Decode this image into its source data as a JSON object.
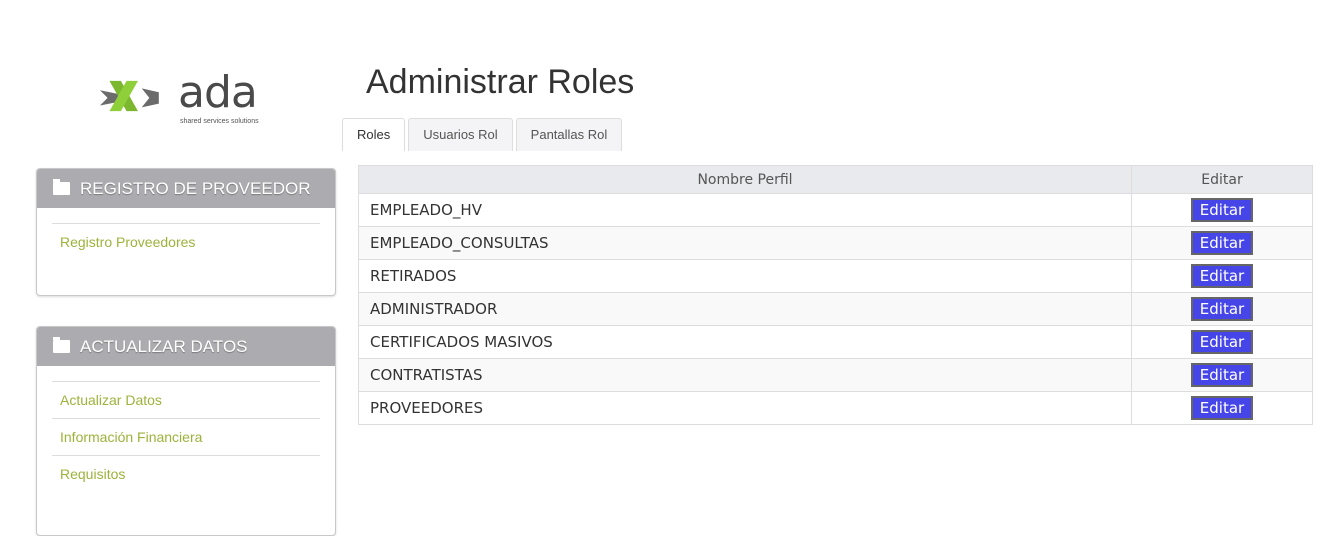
{
  "logo": {
    "text": "ada",
    "tagline": "shared services solutions"
  },
  "page_title": "Administrar Roles",
  "tabs": [
    {
      "label": "Roles"
    },
    {
      "label": "Usuarios Rol"
    },
    {
      "label": "Pantallas Rol"
    }
  ],
  "sidebar": {
    "panels": [
      {
        "title": "REGISTRO DE PROVEEDOR",
        "items": [
          {
            "label": "Registro Proveedores"
          }
        ]
      },
      {
        "title": "ACTUALIZAR DATOS",
        "items": [
          {
            "label": "Actualizar Datos"
          },
          {
            "label": "Información Financiera"
          },
          {
            "label": "Requisitos"
          }
        ]
      }
    ]
  },
  "table": {
    "headers": [
      "Nombre Perfil",
      "Editar"
    ],
    "button_label": "Editar",
    "rows": [
      "EMPLEADO_HV",
      "EMPLEADO_CONSULTAS",
      "RETIRADOS",
      "ADMINISTRADOR",
      "CERTIFICADOS MASIVOS",
      "CONTRATISTAS",
      "PROVEEDORES"
    ]
  },
  "colors": {
    "accent_button": "#4646e8",
    "link": "#9cb33b",
    "panel_header": "#acacb0"
  }
}
